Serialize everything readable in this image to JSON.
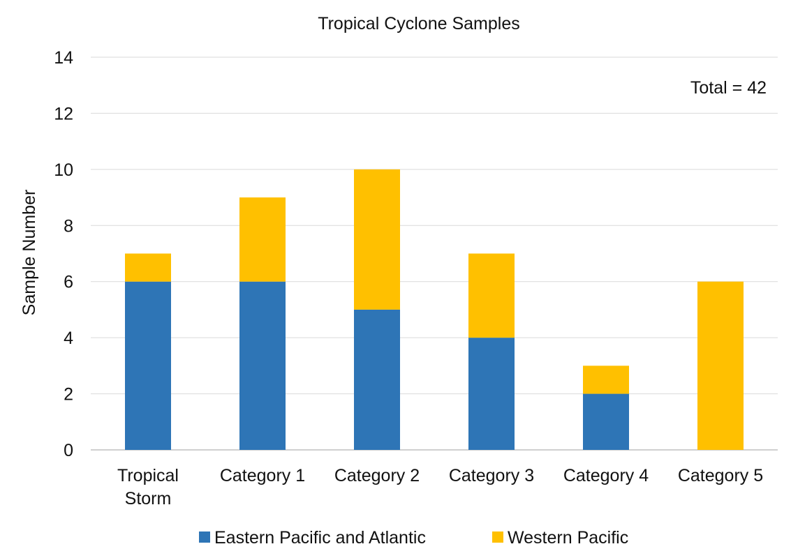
{
  "chart_data": {
    "type": "bar",
    "stacked": true,
    "title": "Tropical Cyclone Samples",
    "xlabel": "",
    "ylabel": "Sample Number",
    "ylim": [
      0,
      14
    ],
    "yticks": [
      0,
      2,
      4,
      6,
      8,
      10,
      12,
      14
    ],
    "grid": true,
    "categories": [
      [
        "Tropical",
        "Storm"
      ],
      [
        "Category 1"
      ],
      [
        "Category 2"
      ],
      [
        "Category 3"
      ],
      [
        "Category 4"
      ],
      [
        "Category 5"
      ]
    ],
    "series": [
      {
        "name": "Eastern Pacific and Atlantic",
        "color": "#2E75B6",
        "values": [
          6,
          6,
          5,
          4,
          2,
          0
        ]
      },
      {
        "name": "Western Pacific",
        "color": "#FFC000",
        "values": [
          1,
          3,
          5,
          3,
          1,
          6
        ]
      }
    ],
    "annotation": "Total = 42",
    "legend_position": "bottom"
  }
}
